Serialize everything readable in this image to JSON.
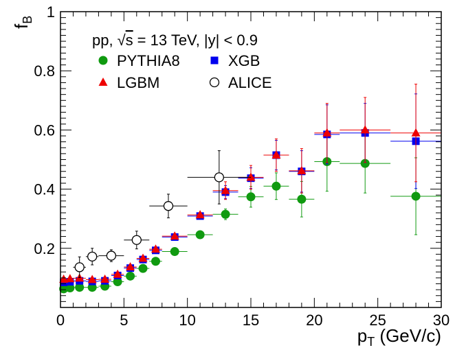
{
  "chart_data": {
    "type": "scatter",
    "xlabel_main": "p",
    "xlabel_sub": "T",
    "xlabel_unit": " (GeV/c)",
    "ylabel_main": "f",
    "ylabel_sub": "B",
    "xlim": [
      0,
      30
    ],
    "ylim": [
      0,
      1
    ],
    "x_ticks": [
      0,
      5,
      10,
      15,
      20,
      25,
      30
    ],
    "y_ticks": [
      0.2,
      0.4,
      0.6,
      0.8,
      1
    ],
    "y_tick_labels": [
      "0.2",
      "0.4",
      "0.6",
      "0.8",
      "1"
    ],
    "annotation": {
      "prefix": "pp,",
      "radical": "√",
      "sqrt_arg": "s",
      "rest": "= 13 TeV, |y| < 0.9"
    },
    "series": [
      {
        "name": "PYTHIA8",
        "marker": "circle",
        "color": "#109a10",
        "points": [
          {
            "x": 0.25,
            "y": 0.063,
            "xerr": 0.25,
            "yerr": 0.004
          },
          {
            "x": 0.75,
            "y": 0.066,
            "xerr": 0.25,
            "yerr": 0.004
          },
          {
            "x": 1.5,
            "y": 0.068,
            "xerr": 0.5,
            "yerr": 0.004
          },
          {
            "x": 2.5,
            "y": 0.068,
            "xerr": 0.5,
            "yerr": 0.004
          },
          {
            "x": 3.5,
            "y": 0.072,
            "xerr": 0.5,
            "yerr": 0.004
          },
          {
            "x": 4.5,
            "y": 0.087,
            "xerr": 0.5,
            "yerr": 0.004
          },
          {
            "x": 5.5,
            "y": 0.106,
            "xerr": 0.5,
            "yerr": 0.005
          },
          {
            "x": 6.5,
            "y": 0.132,
            "xerr": 0.5,
            "yerr": 0.005
          },
          {
            "x": 7.5,
            "y": 0.156,
            "xerr": 0.5,
            "yerr": 0.006
          },
          {
            "x": 9,
            "y": 0.189,
            "xerr": 1,
            "yerr": 0.007
          },
          {
            "x": 11,
            "y": 0.246,
            "xerr": 1,
            "yerr": 0.009
          },
          {
            "x": 13,
            "y": 0.315,
            "xerr": 1,
            "yerr": 0.018
          },
          {
            "x": 15,
            "y": 0.374,
            "xerr": 1,
            "yerr": 0.035
          },
          {
            "x": 17,
            "y": 0.41,
            "xerr": 1,
            "yerr": 0.045
          },
          {
            "x": 19,
            "y": 0.366,
            "xerr": 1,
            "yerr": 0.06
          },
          {
            "x": 21,
            "y": 0.493,
            "xerr": 1,
            "yerr": 0.1
          },
          {
            "x": 24,
            "y": 0.487,
            "xerr": 2,
            "yerr": 0.1
          },
          {
            "x": 28,
            "y": 0.376,
            "xerr": 2,
            "yerr": 0.13
          }
        ]
      },
      {
        "name": "XGB",
        "marker": "square",
        "color": "#0000ee",
        "points": [
          {
            "x": 0.25,
            "y": 0.085,
            "xerr": 0.25,
            "yerr": 0.005
          },
          {
            "x": 0.75,
            "y": 0.087,
            "xerr": 0.25,
            "yerr": 0.005
          },
          {
            "x": 1.5,
            "y": 0.09,
            "xerr": 0.5,
            "yerr": 0.005
          },
          {
            "x": 2.5,
            "y": 0.088,
            "xerr": 0.5,
            "yerr": 0.005
          },
          {
            "x": 3.5,
            "y": 0.09,
            "xerr": 0.5,
            "yerr": 0.005
          },
          {
            "x": 4.5,
            "y": 0.108,
            "xerr": 0.5,
            "yerr": 0.005
          },
          {
            "x": 5.5,
            "y": 0.133,
            "xerr": 0.5,
            "yerr": 0.006
          },
          {
            "x": 6.5,
            "y": 0.162,
            "xerr": 0.5,
            "yerr": 0.006
          },
          {
            "x": 7.5,
            "y": 0.193,
            "xerr": 0.5,
            "yerr": 0.007
          },
          {
            "x": 9,
            "y": 0.238,
            "xerr": 1,
            "yerr": 0.009
          },
          {
            "x": 11,
            "y": 0.309,
            "xerr": 1,
            "yerr": 0.012
          },
          {
            "x": 13,
            "y": 0.39,
            "xerr": 1,
            "yerr": 0.022
          },
          {
            "x": 15,
            "y": 0.437,
            "xerr": 1,
            "yerr": 0.035
          },
          {
            "x": 17,
            "y": 0.515,
            "xerr": 1,
            "yerr": 0.05
          },
          {
            "x": 19,
            "y": 0.46,
            "xerr": 1,
            "yerr": 0.07
          },
          {
            "x": 21,
            "y": 0.585,
            "xerr": 1,
            "yerr": 0.1
          },
          {
            "x": 24,
            "y": 0.59,
            "xerr": 2,
            "yerr": 0.1
          },
          {
            "x": 28,
            "y": 0.562,
            "xerr": 2,
            "yerr": 0.16
          }
        ]
      },
      {
        "name": "LGBM",
        "marker": "triangle",
        "color": "#ee0000",
        "points": [
          {
            "x": 0.25,
            "y": 0.095,
            "xerr": 0.25,
            "yerr": 0.006
          },
          {
            "x": 0.75,
            "y": 0.097,
            "xerr": 0.25,
            "yerr": 0.006
          },
          {
            "x": 1.5,
            "y": 0.099,
            "xerr": 0.5,
            "yerr": 0.006
          },
          {
            "x": 2.5,
            "y": 0.094,
            "xerr": 0.5,
            "yerr": 0.006
          },
          {
            "x": 3.5,
            "y": 0.095,
            "xerr": 0.5,
            "yerr": 0.006
          },
          {
            "x": 4.5,
            "y": 0.112,
            "xerr": 0.5,
            "yerr": 0.006
          },
          {
            "x": 5.5,
            "y": 0.137,
            "xerr": 0.5,
            "yerr": 0.006
          },
          {
            "x": 6.5,
            "y": 0.166,
            "xerr": 0.5,
            "yerr": 0.007
          },
          {
            "x": 7.5,
            "y": 0.197,
            "xerr": 0.5,
            "yerr": 0.007
          },
          {
            "x": 9,
            "y": 0.241,
            "xerr": 1,
            "yerr": 0.009
          },
          {
            "x": 11,
            "y": 0.313,
            "xerr": 1,
            "yerr": 0.012
          },
          {
            "x": 13,
            "y": 0.395,
            "xerr": 1,
            "yerr": 0.03
          },
          {
            "x": 15,
            "y": 0.44,
            "xerr": 1,
            "yerr": 0.04
          },
          {
            "x": 17,
            "y": 0.515,
            "xerr": 1,
            "yerr": 0.055
          },
          {
            "x": 19,
            "y": 0.462,
            "xerr": 1,
            "yerr": 0.075
          },
          {
            "x": 21,
            "y": 0.59,
            "xerr": 1,
            "yerr": 0.1
          },
          {
            "x": 24,
            "y": 0.6,
            "xerr": 2,
            "yerr": 0.11
          },
          {
            "x": 28,
            "y": 0.59,
            "xerr": 2,
            "yerr": 0.165
          }
        ]
      },
      {
        "name": "ALICE",
        "marker": "open-circle",
        "color": "#000000",
        "points": [
          {
            "x": 1.5,
            "y": 0.136,
            "xerr": 0.5,
            "yerr": 0.035
          },
          {
            "x": 2.5,
            "y": 0.172,
            "xerr": 0.5,
            "yerr": 0.028
          },
          {
            "x": 4,
            "y": 0.175,
            "xerr": 1,
            "yerr": 0.02
          },
          {
            "x": 6,
            "y": 0.228,
            "xerr": 1,
            "yerr": 0.03
          },
          {
            "x": 8.5,
            "y": 0.343,
            "xerr": 1.5,
            "yerr": 0.04
          },
          {
            "x": 12.5,
            "y": 0.44,
            "xerr": 2.5,
            "yerr": 0.09
          }
        ]
      }
    ],
    "draw_order": [
      "PYTHIA8",
      "XGB",
      "LGBM",
      "ALICE"
    ],
    "legend_layout": [
      [
        "PYTHIA8",
        "XGB"
      ],
      [
        "LGBM",
        "ALICE"
      ]
    ]
  }
}
